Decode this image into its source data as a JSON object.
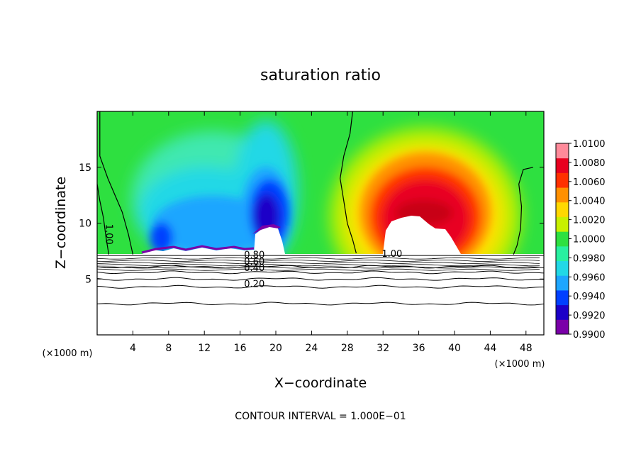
{
  "chart_data": {
    "type": "heatmap",
    "title": "saturation ratio",
    "xlabel": "X−coordinate",
    "ylabel": "Z−coordinate",
    "x_unit": "(×1000 m)",
    "z_unit": "(×1000 m)",
    "xlim": [
      0,
      50
    ],
    "ylim": [
      0,
      20
    ],
    "x_ticks": [
      4,
      8,
      12,
      16,
      20,
      24,
      28,
      32,
      36,
      40,
      44,
      48
    ],
    "y_ticks": [
      5,
      10,
      15
    ],
    "note": "CONTOUR INTERVAL = 1.000E−01",
    "colorbar": {
      "labels": [
        "1.0100",
        "1.0080",
        "1.0060",
        "1.0040",
        "1.0020",
        "1.0000",
        "0.9980",
        "0.9960",
        "0.9940",
        "0.9920",
        "0.9900"
      ],
      "min": 0.99,
      "max": 1.01,
      "colors": [
        "#7a00a8",
        "#1c00c8",
        "#0040ff",
        "#1ea6ff",
        "#22d8e6",
        "#28f0a0",
        "#2ee040",
        "#c8f000",
        "#ffd800",
        "#ff9000",
        "#ff3000",
        "#e80020",
        "#ff8a9a"
      ]
    },
    "contour_labels": [
      {
        "text": "1.00",
        "x": 1.0,
        "z": 9.0
      },
      {
        "text": "0.80",
        "x": 17.6,
        "z": 6.9
      },
      {
        "text": "0.60",
        "x": 17.6,
        "z": 6.3
      },
      {
        "text": "0.40",
        "x": 17.6,
        "z": 5.7
      },
      {
        "text": "0.20",
        "x": 17.6,
        "z": 4.3
      },
      {
        "text": "1.00",
        "x": 33.0,
        "z": 7.0
      }
    ],
    "contour_levels_z": [
      6.1,
      5.6,
      5.0,
      4.3,
      2.8
    ],
    "colored_region": {
      "z_base": 7.1
    },
    "left_contour": [
      [
        0.3,
        20
      ],
      [
        0.3,
        16.0
      ],
      [
        1.2,
        14.0
      ],
      [
        2.0,
        12.5
      ],
      [
        2.8,
        11.0
      ],
      [
        3.5,
        9.0
      ],
      [
        4.0,
        7.2
      ]
    ],
    "left_contour_b": [
      [
        0,
        13.5
      ],
      [
        0.3,
        12.0
      ],
      [
        0.7,
        10.5
      ],
      [
        1.0,
        8.7
      ],
      [
        1.3,
        7.2
      ]
    ],
    "mid_contour": [
      [
        28.6,
        20
      ],
      [
        28.3,
        18.0
      ],
      [
        27.6,
        16.0
      ],
      [
        27.2,
        14.0
      ],
      [
        27.6,
        12.0
      ],
      [
        28.0,
        10.0
      ],
      [
        28.6,
        8.5
      ],
      [
        29.0,
        7.3
      ]
    ],
    "right_contour": [
      [
        48.8,
        15.0
      ],
      [
        47.7,
        14.8
      ],
      [
        47.2,
        13.5
      ],
      [
        47.5,
        11.5
      ],
      [
        47.4,
        9.5
      ],
      [
        47.0,
        8.0
      ],
      [
        46.6,
        7.2
      ]
    ]
  }
}
